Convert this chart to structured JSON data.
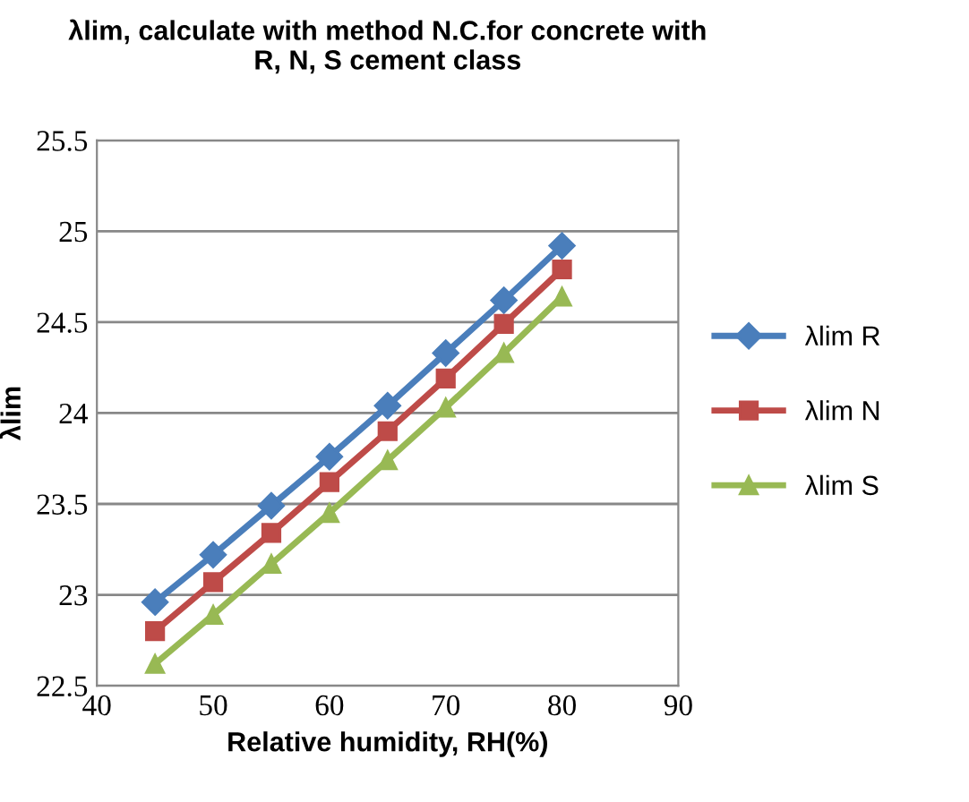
{
  "chart_data": {
    "type": "line",
    "title": "λlim, calculate with method N.C.for concrete with\nR, N, S cement class",
    "xlabel": "Relative humidity, RH(%)",
    "ylabel": "λlim",
    "x": [
      45,
      50,
      55,
      60,
      65,
      70,
      75,
      80
    ],
    "series": [
      {
        "name": "λlim R",
        "color": "#4a7ebb",
        "marker": "diamond",
        "values": [
          22.96,
          23.22,
          23.49,
          23.76,
          24.04,
          24.33,
          24.62,
          24.92
        ]
      },
      {
        "name": "λlim N",
        "color": "#be4b48",
        "marker": "square",
        "values": [
          22.8,
          23.07,
          23.34,
          23.62,
          23.9,
          24.19,
          24.49,
          24.79
        ]
      },
      {
        "name": "λlim S",
        "color": "#98b954",
        "marker": "triangle",
        "values": [
          22.62,
          22.89,
          23.17,
          23.45,
          23.74,
          24.03,
          24.33,
          24.64
        ]
      }
    ],
    "xlim": [
      40,
      90
    ],
    "xticks": [
      40,
      50,
      60,
      70,
      80,
      90
    ],
    "ylim": [
      22.5,
      25.5
    ],
    "yticks": [
      {
        "value": 22.5,
        "label": "22.5"
      },
      {
        "value": 23,
        "label": "23"
      },
      {
        "value": 23.5,
        "label": "23.5"
      },
      {
        "value": 24,
        "label": "24"
      },
      {
        "value": 24.5,
        "label": "24.5"
      },
      {
        "value": 25,
        "label": "25"
      },
      {
        "value": 25.5,
        "label": "25.5"
      }
    ],
    "grid": "y",
    "legend": "right",
    "line_style": "solid"
  }
}
